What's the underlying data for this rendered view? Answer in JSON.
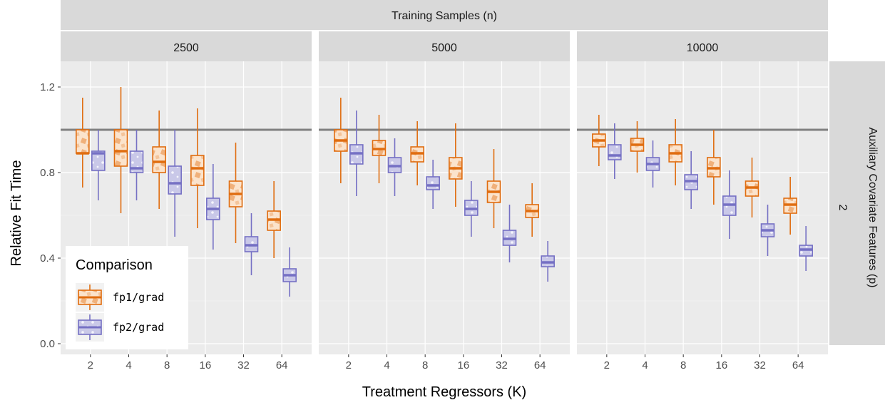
{
  "chart_data": {
    "type": "boxplot",
    "facet_top_title": "Training Samples (n)",
    "facet_right_title": "Auxiliary Covariate Features (p)",
    "facet_right_value": "2",
    "xlabel": "Treatment Regressors (K)",
    "ylabel": "Relative Fit Time",
    "x_categories": [
      "2",
      "4",
      "8",
      "16",
      "32",
      "64"
    ],
    "y_ticks": [
      0.0,
      0.4,
      0.8,
      1.2
    ],
    "y_tick_labels": [
      "0.0",
      "0.4",
      "0.8",
      "1.2"
    ],
    "ylim": [
      -0.05,
      1.32
    ],
    "reference_line": 1.0,
    "grid": true,
    "legend": {
      "title": "Comparison",
      "position": "bottom-left",
      "entries": [
        {
          "label": "fp1/grad",
          "color": "#e06d10"
        },
        {
          "label": "fp2/grad",
          "color": "#7570c4"
        }
      ]
    },
    "panels": [
      {
        "label": "2500",
        "series": [
          {
            "name": "fp1/grad",
            "boxes": [
              {
                "x": "2",
                "min": 0.73,
                "q1": 0.89,
                "median": 0.89,
                "q3": 1.0,
                "max": 1.15
              },
              {
                "x": "4",
                "min": 0.61,
                "q1": 0.83,
                "median": 0.9,
                "q3": 1.0,
                "max": 1.2
              },
              {
                "x": "8",
                "min": 0.63,
                "q1": 0.8,
                "median": 0.85,
                "q3": 0.92,
                "max": 1.09
              },
              {
                "x": "16",
                "min": 0.54,
                "q1": 0.74,
                "median": 0.82,
                "q3": 0.88,
                "max": 1.1
              },
              {
                "x": "32",
                "min": 0.47,
                "q1": 0.64,
                "median": 0.7,
                "q3": 0.76,
                "max": 0.94
              },
              {
                "x": "64",
                "min": 0.4,
                "q1": 0.53,
                "median": 0.58,
                "q3": 0.62,
                "max": 0.76
              }
            ]
          },
          {
            "name": "fp2/grad",
            "boxes": [
              {
                "x": "2",
                "min": 0.67,
                "q1": 0.81,
                "median": 0.89,
                "q3": 0.9,
                "max": 1.0
              },
              {
                "x": "4",
                "min": 0.67,
                "q1": 0.8,
                "median": 0.82,
                "q3": 0.9,
                "max": 1.0
              },
              {
                "x": "8",
                "min": 0.5,
                "q1": 0.7,
                "median": 0.75,
                "q3": 0.83,
                "max": 1.0
              },
              {
                "x": "16",
                "min": 0.44,
                "q1": 0.58,
                "median": 0.63,
                "q3": 0.68,
                "max": 0.84
              },
              {
                "x": "32",
                "min": 0.32,
                "q1": 0.43,
                "median": 0.46,
                "q3": 0.5,
                "max": 0.61
              },
              {
                "x": "64",
                "min": 0.22,
                "q1": 0.29,
                "median": 0.32,
                "q3": 0.35,
                "max": 0.45
              }
            ]
          }
        ]
      },
      {
        "label": "5000",
        "series": [
          {
            "name": "fp1/grad",
            "boxes": [
              {
                "x": "2",
                "min": 0.75,
                "q1": 0.9,
                "median": 0.95,
                "q3": 1.0,
                "max": 1.15
              },
              {
                "x": "4",
                "min": 0.75,
                "q1": 0.88,
                "median": 0.91,
                "q3": 0.95,
                "max": 1.07
              },
              {
                "x": "8",
                "min": 0.74,
                "q1": 0.85,
                "median": 0.89,
                "q3": 0.92,
                "max": 1.04
              },
              {
                "x": "16",
                "min": 0.64,
                "q1": 0.77,
                "median": 0.82,
                "q3": 0.87,
                "max": 1.03
              },
              {
                "x": "32",
                "min": 0.54,
                "q1": 0.66,
                "median": 0.71,
                "q3": 0.76,
                "max": 0.91
              },
              {
                "x": "64",
                "min": 0.5,
                "q1": 0.59,
                "median": 0.62,
                "q3": 0.65,
                "max": 0.75
              }
            ]
          },
          {
            "name": "fp2/grad",
            "boxes": [
              {
                "x": "2",
                "min": 0.69,
                "q1": 0.84,
                "median": 0.89,
                "q3": 0.93,
                "max": 1.09
              },
              {
                "x": "4",
                "min": 0.69,
                "q1": 0.8,
                "median": 0.83,
                "q3": 0.87,
                "max": 0.96
              },
              {
                "x": "8",
                "min": 0.63,
                "q1": 0.72,
                "median": 0.74,
                "q3": 0.78,
                "max": 0.86
              },
              {
                "x": "16",
                "min": 0.5,
                "q1": 0.6,
                "median": 0.63,
                "q3": 0.67,
                "max": 0.76
              },
              {
                "x": "32",
                "min": 0.38,
                "q1": 0.46,
                "median": 0.49,
                "q3": 0.53,
                "max": 0.65
              },
              {
                "x": "64",
                "min": 0.29,
                "q1": 0.36,
                "median": 0.38,
                "q3": 0.41,
                "max": 0.48
              }
            ]
          }
        ]
      },
      {
        "label": "10000",
        "series": [
          {
            "name": "fp1/grad",
            "boxes": [
              {
                "x": "2",
                "min": 0.83,
                "q1": 0.92,
                "median": 0.95,
                "q3": 0.98,
                "max": 1.07
              },
              {
                "x": "4",
                "min": 0.8,
                "q1": 0.9,
                "median": 0.93,
                "q3": 0.96,
                "max": 1.04
              },
              {
                "x": "8",
                "min": 0.74,
                "q1": 0.85,
                "median": 0.89,
                "q3": 0.93,
                "max": 1.05
              },
              {
                "x": "16",
                "min": 0.65,
                "q1": 0.78,
                "median": 0.82,
                "q3": 0.87,
                "max": 1.0
              },
              {
                "x": "32",
                "min": 0.59,
                "q1": 0.69,
                "median": 0.73,
                "q3": 0.76,
                "max": 0.87
              },
              {
                "x": "64",
                "min": 0.51,
                "q1": 0.61,
                "median": 0.65,
                "q3": 0.68,
                "max": 0.78
              }
            ]
          },
          {
            "name": "fp2/grad",
            "boxes": [
              {
                "x": "2",
                "min": 0.77,
                "q1": 0.86,
                "median": 0.88,
                "q3": 0.93,
                "max": 1.03
              },
              {
                "x": "4",
                "min": 0.73,
                "q1": 0.81,
                "median": 0.84,
                "q3": 0.87,
                "max": 0.95
              },
              {
                "x": "8",
                "min": 0.63,
                "q1": 0.72,
                "median": 0.76,
                "q3": 0.79,
                "max": 0.9
              },
              {
                "x": "16",
                "min": 0.49,
                "q1": 0.6,
                "median": 0.65,
                "q3": 0.69,
                "max": 0.81
              },
              {
                "x": "32",
                "min": 0.41,
                "q1": 0.5,
                "median": 0.53,
                "q3": 0.56,
                "max": 0.65
              },
              {
                "x": "64",
                "min": 0.34,
                "q1": 0.41,
                "median": 0.44,
                "q3": 0.46,
                "max": 0.55
              }
            ]
          }
        ]
      }
    ]
  }
}
